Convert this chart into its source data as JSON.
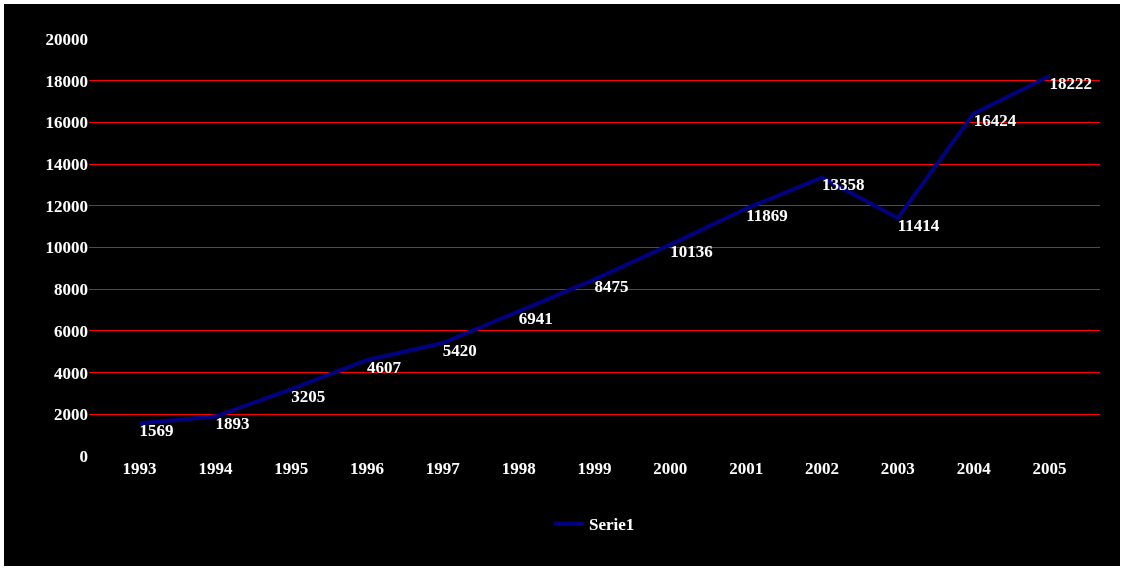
{
  "chart_data": {
    "type": "line",
    "categories": [
      "1993",
      "1994",
      "1995",
      "1996",
      "1997",
      "1998",
      "1999",
      "2000",
      "2001",
      "2002",
      "2003",
      "2004",
      "2005"
    ],
    "series": [
      {
        "name": "Serie1",
        "color": "#000080",
        "values": [
          1569,
          1893,
          3205,
          4607,
          5420,
          6941,
          8475,
          10136,
          11869,
          13358,
          11414,
          16424,
          18222
        ]
      }
    ],
    "ylim": [
      0,
      20000
    ],
    "yticks": [
      0,
      2000,
      4000,
      6000,
      8000,
      10000,
      12000,
      14000,
      16000,
      18000,
      20000
    ],
    "grid": "y",
    "legend": "bottom",
    "data_labels": true,
    "marker": "none",
    "line_style": "solid"
  }
}
